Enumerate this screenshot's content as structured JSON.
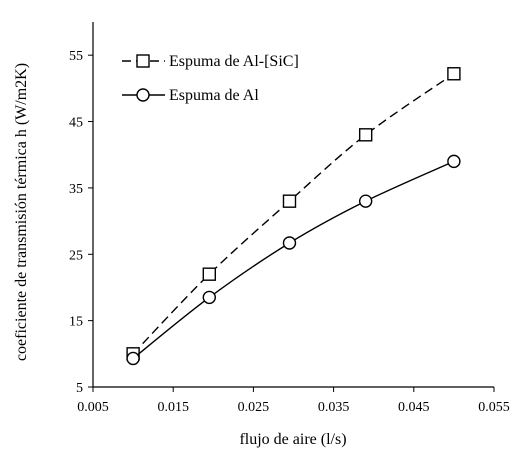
{
  "chart_data": {
    "type": "line",
    "title": "",
    "xlabel": "flujo de aire (l/s)",
    "ylabel": "coeficiente de transmisión térmica h (W/m2K)",
    "xlim": [
      0.005,
      0.055
    ],
    "ylim": [
      5,
      60
    ],
    "xticks": [
      "0.005",
      "0.015",
      "0.025",
      "0.035",
      "0.045",
      "0.055"
    ],
    "yticks": [
      "5",
      "15",
      "25",
      "35",
      "45",
      "55"
    ],
    "grid": false,
    "legend_position": "top-left",
    "series": [
      {
        "name": "Espuma de Al-[SiC]",
        "marker": "square",
        "line_style": "dashed",
        "color": "#000000",
        "x": [
          0.01,
          0.0195,
          0.0295,
          0.039,
          0.05
        ],
        "y": [
          10,
          22,
          33,
          43,
          52.2
        ]
      },
      {
        "name": "Espuma de Al",
        "marker": "circle",
        "line_style": "solid",
        "color": "#000000",
        "x": [
          0.01,
          0.0195,
          0.0295,
          0.039,
          0.05
        ],
        "y": [
          9.3,
          18.5,
          26.7,
          33,
          39
        ]
      }
    ]
  }
}
